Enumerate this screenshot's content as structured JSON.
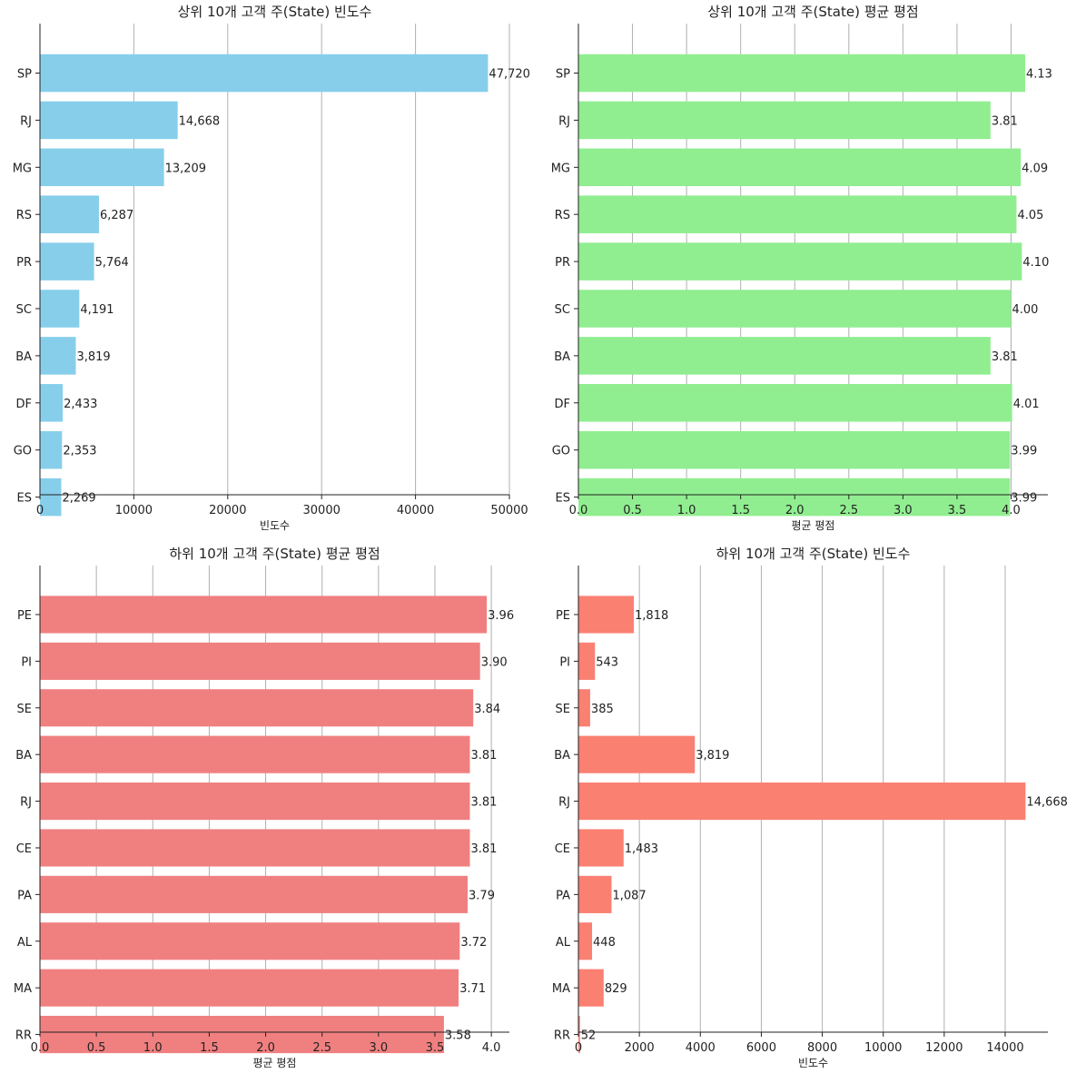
{
  "chart_data": [
    {
      "type": "bar",
      "orientation": "horizontal",
      "title": "상위 10개 고객 주(State) 빈도수",
      "xlabel": "빈도수",
      "ylabel": "",
      "categories": [
        "SP",
        "RJ",
        "MG",
        "RS",
        "PR",
        "SC",
        "BA",
        "DF",
        "GO",
        "ES"
      ],
      "values": [
        47720,
        14668,
        13209,
        6287,
        5764,
        4191,
        3819,
        2433,
        2353,
        2269
      ],
      "value_labels": [
        "47,720",
        "14,668",
        "13,209",
        "6,287",
        "5,764",
        "4,191",
        "3,819",
        "2,433",
        "2,353",
        "2,269"
      ],
      "xlim": [
        0,
        50000
      ],
      "xticks": [
        0,
        10000,
        20000,
        30000,
        40000,
        50000
      ],
      "xtick_labels": [
        "0",
        "10000",
        "20000",
        "30000",
        "40000",
        "50000"
      ],
      "color": "#87ceeb",
      "grid": "x"
    },
    {
      "type": "bar",
      "orientation": "horizontal",
      "title": "상위 10개 고객 주(State) 평균 평점",
      "xlabel": "평균 평점",
      "ylabel": "",
      "categories": [
        "SP",
        "RJ",
        "MG",
        "RS",
        "PR",
        "SC",
        "BA",
        "DF",
        "GO",
        "ES"
      ],
      "values": [
        4.13,
        3.81,
        4.09,
        4.05,
        4.1,
        4.0,
        3.81,
        4.01,
        3.99,
        3.99
      ],
      "value_labels": [
        "4.13",
        "3.81",
        "4.09",
        "4.05",
        "4.10",
        "4.00",
        "3.81",
        "4.01",
        "3.99",
        "3.99"
      ],
      "xlim": [
        0,
        4.34
      ],
      "xticks": [
        0,
        0.5,
        1.0,
        1.5,
        2.0,
        2.5,
        3.0,
        3.5,
        4.0
      ],
      "xtick_labels": [
        "0.0",
        "0.5",
        "1.0",
        "1.5",
        "2.0",
        "2.5",
        "3.0",
        "3.5",
        "4.0"
      ],
      "color": "#90ee90",
      "grid": "x"
    },
    {
      "type": "bar",
      "orientation": "horizontal",
      "title": "하위 10개 고객 주(State) 평균 평점",
      "xlabel": "평균 평점",
      "ylabel": "",
      "categories": [
        "PE",
        "PI",
        "SE",
        "BA",
        "RJ",
        "CE",
        "PA",
        "AL",
        "MA",
        "RR"
      ],
      "values": [
        3.96,
        3.9,
        3.84,
        3.81,
        3.81,
        3.81,
        3.79,
        3.72,
        3.71,
        3.58
      ],
      "value_labels": [
        "3.96",
        "3.90",
        "3.84",
        "3.81",
        "3.81",
        "3.81",
        "3.79",
        "3.72",
        "3.71",
        "3.58"
      ],
      "xlim": [
        0,
        4.16
      ],
      "xticks": [
        0,
        0.5,
        1.0,
        1.5,
        2.0,
        2.5,
        3.0,
        3.5,
        4.0
      ],
      "xtick_labels": [
        "0.0",
        "0.5",
        "1.0",
        "1.5",
        "2.0",
        "2.5",
        "3.0",
        "3.5",
        "4.0"
      ],
      "color": "#f08080",
      "grid": "x"
    },
    {
      "type": "bar",
      "orientation": "horizontal",
      "title": "하위 10개 고객 주(State) 빈도수",
      "xlabel": "빈도수",
      "ylabel": "",
      "categories": [
        "PE",
        "PI",
        "SE",
        "BA",
        "RJ",
        "CE",
        "PA",
        "AL",
        "MA",
        "RR"
      ],
      "values": [
        1818,
        543,
        385,
        3819,
        14668,
        1483,
        1087,
        448,
        829,
        52
      ],
      "value_labels": [
        "1,818",
        "543",
        "385",
        "3,819",
        "14,668",
        "1,483",
        "1,087",
        "448",
        "829",
        "52"
      ],
      "xlim": [
        0,
        15400
      ],
      "xticks": [
        0,
        2000,
        4000,
        6000,
        8000,
        10000,
        12000,
        14000
      ],
      "xtick_labels": [
        "0",
        "2000",
        "4000",
        "6000",
        "8000",
        "10000",
        "12000",
        "14000"
      ],
      "color": "#fa8072",
      "grid": "x"
    }
  ]
}
